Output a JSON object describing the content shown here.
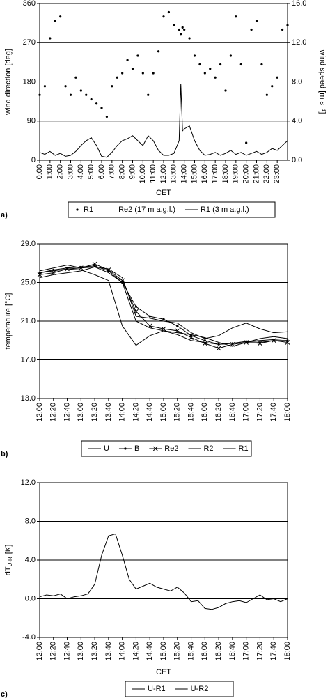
{
  "chart_data": [
    {
      "type": "line",
      "panel": "a)",
      "xlabel": "CET",
      "ylabel": "wind direction [deg]",
      "y2label": "wind speed [m s⁻¹]",
      "x": [
        0,
        30,
        60,
        90,
        120,
        150,
        180,
        210,
        240,
        270,
        300,
        330,
        360,
        390,
        420,
        450,
        480,
        510,
        540,
        570,
        600,
        630,
        660,
        690,
        720,
        750,
        780,
        810,
        820,
        830,
        840,
        870,
        900,
        930,
        960,
        990,
        1020,
        1050,
        1080,
        1110,
        1140,
        1170,
        1200,
        1230,
        1260,
        1290,
        1320,
        1350,
        1380,
        1410,
        1440
      ],
      "xlim": [
        0,
        1440
      ],
      "xticks": [
        {
          "value": 0,
          "label": "0:00"
        },
        {
          "value": 60,
          "label": "1:00"
        },
        {
          "value": 120,
          "label": "2:00"
        },
        {
          "value": 180,
          "label": "3:00"
        },
        {
          "value": 240,
          "label": "4:00"
        },
        {
          "value": 300,
          "label": "5:00"
        },
        {
          "value": 360,
          "label": "6:00"
        },
        {
          "value": 420,
          "label": "7:00"
        },
        {
          "value": 480,
          "label": "8:00"
        },
        {
          "value": 540,
          "label": "9:00"
        },
        {
          "value": 600,
          "label": "10:00"
        },
        {
          "value": 660,
          "label": "11:00"
        },
        {
          "value": 720,
          "label": "12:00"
        },
        {
          "value": 780,
          "label": "13:00"
        },
        {
          "value": 840,
          "label": "14:00"
        },
        {
          "value": 900,
          "label": "15:00"
        },
        {
          "value": 960,
          "label": "16:00"
        },
        {
          "value": 1020,
          "label": "17:00"
        },
        {
          "value": 1080,
          "label": "18:00"
        },
        {
          "value": 1140,
          "label": "19:00"
        },
        {
          "value": 1200,
          "label": "20:00"
        },
        {
          "value": 1260,
          "label": "21:00"
        },
        {
          "value": 1320,
          "label": "22:00"
        },
        {
          "value": 1380,
          "label": "23:00"
        }
      ],
      "ylim": [
        0,
        360
      ],
      "yticks": [
        0,
        90,
        180,
        270,
        360
      ],
      "y2lim": [
        0,
        16
      ],
      "y2ticks": [
        {
          "value": 0,
          "label": "0.0"
        },
        {
          "value": 4,
          "label": "4.0"
        },
        {
          "value": 8,
          "label": "8.0"
        },
        {
          "value": 12,
          "label": "12.0"
        },
        {
          "value": 16,
          "label": "16.0"
        }
      ],
      "grid": true,
      "series": [
        {
          "name": "R1",
          "type": "scatter",
          "color": "#000000",
          "marker": "dot",
          "values": [
            150,
            170,
            280,
            320,
            330,
            170,
            150,
            190,
            160,
            150,
            140,
            130,
            120,
            100,
            170,
            190,
            200,
            230,
            210,
            240,
            200,
            150,
            200,
            250,
            330,
            340,
            310,
            300,
            290,
            305,
            300,
            280,
            240,
            220,
            200,
            210,
            190,
            220,
            160,
            240,
            330,
            220,
            40,
            300,
            320,
            220,
            150,
            170,
            190,
            300,
            310
          ]
        },
        {
          "name": "Re2 (17 m a.g.l.)",
          "type": "line",
          "color": "#ffffff",
          "marker": "none",
          "values": [
            null,
            null,
            null,
            null,
            null,
            null,
            null,
            null,
            null,
            null,
            null,
            null,
            null,
            null,
            null,
            null,
            null,
            null,
            null,
            null,
            null,
            null,
            null,
            null,
            null,
            null,
            null,
            null,
            null,
            null,
            null,
            null,
            null,
            null,
            null,
            null,
            null,
            null,
            null,
            null,
            null,
            null,
            null,
            null,
            null,
            null,
            null,
            null,
            null,
            null,
            null
          ]
        },
        {
          "name": "R1 (3 m a.g.l.)",
          "type": "line",
          "axis": "y2",
          "color": "#000000",
          "marker": "none",
          "values": [
            0.8,
            0.6,
            0.9,
            0.5,
            0.7,
            0.4,
            0.5,
            0.9,
            1.5,
            2.0,
            2.3,
            1.5,
            0.4,
            0.3,
            0.8,
            1.5,
            2.0,
            2.2,
            2.5,
            2.0,
            1.5,
            2.5,
            2.0,
            1.0,
            0.5,
            0.5,
            0.7,
            2.0,
            7.8,
            3.0,
            3.2,
            3.5,
            2.0,
            1.0,
            0.5,
            0.6,
            0.8,
            0.5,
            0.7,
            1.0,
            0.6,
            0.8,
            0.5,
            0.7,
            0.9,
            0.6,
            0.8,
            1.2,
            1.0,
            1.5,
            2.0
          ]
        }
      ]
    },
    {
      "type": "line",
      "panel": "b)",
      "ylabel": "temperature [°C]",
      "x": [
        720,
        740,
        760,
        780,
        800,
        820,
        840,
        860,
        880,
        900,
        920,
        940,
        960,
        980,
        1000,
        1020,
        1040,
        1060,
        1080
      ],
      "xlim": [
        720,
        1080
      ],
      "xticks": [
        {
          "value": 720,
          "label": "12:00"
        },
        {
          "value": 740,
          "label": "12:20"
        },
        {
          "value": 760,
          "label": "12:40"
        },
        {
          "value": 780,
          "label": "13:00"
        },
        {
          "value": 800,
          "label": "13:20"
        },
        {
          "value": 820,
          "label": "13:40"
        },
        {
          "value": 840,
          "label": "14:00"
        },
        {
          "value": 860,
          "label": "14:20"
        },
        {
          "value": 880,
          "label": "14:40"
        },
        {
          "value": 900,
          "label": "15:00"
        },
        {
          "value": 920,
          "label": "15:20"
        },
        {
          "value": 940,
          "label": "15:40"
        },
        {
          "value": 960,
          "label": "16:00"
        },
        {
          "value": 980,
          "label": "16:20"
        },
        {
          "value": 1000,
          "label": "16:40"
        },
        {
          "value": 1020,
          "label": "17:00"
        },
        {
          "value": 1040,
          "label": "17:20"
        },
        {
          "value": 1060,
          "label": "17:40"
        },
        {
          "value": 1080,
          "label": "18:00"
        }
      ],
      "ylim": [
        13,
        29
      ],
      "yticks": [
        {
          "value": 13,
          "label": "13.0"
        },
        {
          "value": 17,
          "label": "17.0"
        },
        {
          "value": 21,
          "label": "21.0"
        },
        {
          "value": 25,
          "label": "25.0"
        },
        {
          "value": 29,
          "label": "29.0"
        }
      ],
      "grid": true,
      "series": [
        {
          "name": "U",
          "type": "line",
          "color": "#000000",
          "marker": "none",
          "values": [
            26.0,
            26.2,
            26.4,
            26.3,
            25.8,
            25.2,
            20.5,
            18.5,
            19.5,
            20.0,
            19.8,
            19.6,
            19.3,
            18.8,
            18.4,
            18.8,
            19.2,
            19.4,
            19.2
          ]
        },
        {
          "name": "B",
          "type": "line",
          "color": "#000000",
          "marker": "dot",
          "values": [
            26.0,
            26.3,
            26.5,
            26.6,
            26.7,
            26.2,
            25.0,
            22.5,
            21.5,
            21.2,
            20.5,
            19.5,
            19.0,
            18.6,
            18.7,
            18.9,
            18.8,
            19.0,
            19.0
          ]
        },
        {
          "name": "Re2",
          "type": "line",
          "color": "#000000",
          "marker": "cross",
          "values": [
            25.8,
            26.0,
            26.4,
            26.5,
            26.9,
            26.3,
            25.2,
            22.0,
            20.5,
            20.2,
            20.0,
            19.3,
            18.7,
            18.2,
            18.6,
            18.8,
            18.7,
            19.0,
            18.8
          ]
        },
        {
          "name": "R2",
          "type": "line",
          "color": "#000000",
          "marker": "none",
          "values": [
            26.2,
            26.5,
            26.8,
            26.5,
            26.6,
            26.4,
            25.5,
            21.5,
            21.3,
            21.0,
            20.8,
            19.8,
            19.2,
            19.5,
            20.3,
            20.8,
            20.2,
            19.8,
            19.9
          ]
        },
        {
          "name": "R1",
          "type": "line",
          "color": "#000000",
          "marker": "none",
          "values": [
            25.5,
            25.8,
            26.0,
            26.2,
            26.6,
            26.0,
            25.0,
            21.0,
            20.3,
            20.0,
            19.6,
            19.0,
            18.8,
            18.6,
            18.7,
            18.9,
            19.0,
            19.1,
            19.2
          ]
        }
      ]
    },
    {
      "type": "line",
      "panel": "c)",
      "xlabel": "CET",
      "ylabel": "dT",
      "ylabel_subscript": "U-R",
      "ylabel_unit": "[K]",
      "x": [
        720,
        730,
        740,
        750,
        760,
        770,
        780,
        790,
        800,
        810,
        820,
        830,
        840,
        850,
        860,
        870,
        880,
        890,
        900,
        910,
        920,
        930,
        940,
        950,
        960,
        970,
        980,
        990,
        1000,
        1010,
        1020,
        1030,
        1040,
        1050,
        1060,
        1070,
        1080
      ],
      "xlim": [
        720,
        1080
      ],
      "xticks": [
        {
          "value": 720,
          "label": "12:00"
        },
        {
          "value": 740,
          "label": "12:20"
        },
        {
          "value": 760,
          "label": "12:40"
        },
        {
          "value": 780,
          "label": "13:00"
        },
        {
          "value": 800,
          "label": "13:20"
        },
        {
          "value": 820,
          "label": "13:40"
        },
        {
          "value": 840,
          "label": "14:00"
        },
        {
          "value": 860,
          "label": "14:20"
        },
        {
          "value": 880,
          "label": "14:40"
        },
        {
          "value": 900,
          "label": "15:00"
        },
        {
          "value": 920,
          "label": "15:20"
        },
        {
          "value": 940,
          "label": "15:40"
        },
        {
          "value": 960,
          "label": "16:00"
        },
        {
          "value": 980,
          "label": "16:20"
        },
        {
          "value": 1000,
          "label": "16:40"
        },
        {
          "value": 1020,
          "label": "17:00"
        },
        {
          "value": 1040,
          "label": "17:20"
        },
        {
          "value": 1060,
          "label": "17:40"
        },
        {
          "value": 1080,
          "label": "18:00"
        }
      ],
      "ylim": [
        -4,
        12
      ],
      "yticks": [
        {
          "value": -4,
          "label": "-4.0"
        },
        {
          "value": 0,
          "label": "0.0"
        },
        {
          "value": 4,
          "label": "4.0"
        },
        {
          "value": 8,
          "label": "8.0"
        },
        {
          "value": 12,
          "label": "12.0"
        }
      ],
      "grid": true,
      "series": [
        {
          "name": "U-R1",
          "type": "line",
          "color": "#000000",
          "marker": "none",
          "values": [
            0.2,
            0.4,
            0.3,
            0.5,
            0.0,
            0.2,
            0.3,
            0.5,
            1.5,
            4.5,
            6.5,
            6.7,
            4.5,
            2.0,
            1.0,
            1.3,
            1.6,
            1.2,
            1.0,
            0.8,
            1.2,
            0.6,
            -0.3,
            -0.2,
            -1.0,
            -1.1,
            -0.9,
            -0.5,
            -0.3,
            -0.2,
            -0.4,
            0.0,
            0.4,
            -0.1,
            0.0,
            -0.3,
            0.0
          ]
        },
        {
          "name": "U-R2",
          "type": "line",
          "color": "#000000",
          "marker": "none",
          "values": [
            null,
            null,
            null,
            null,
            null,
            null,
            null,
            null,
            null,
            null,
            null,
            null,
            null,
            null,
            null,
            null,
            null,
            null,
            null,
            null,
            null,
            null,
            null,
            null,
            null,
            null,
            null,
            null,
            null,
            null,
            null,
            null,
            null,
            null,
            null,
            null,
            null
          ]
        }
      ]
    }
  ]
}
